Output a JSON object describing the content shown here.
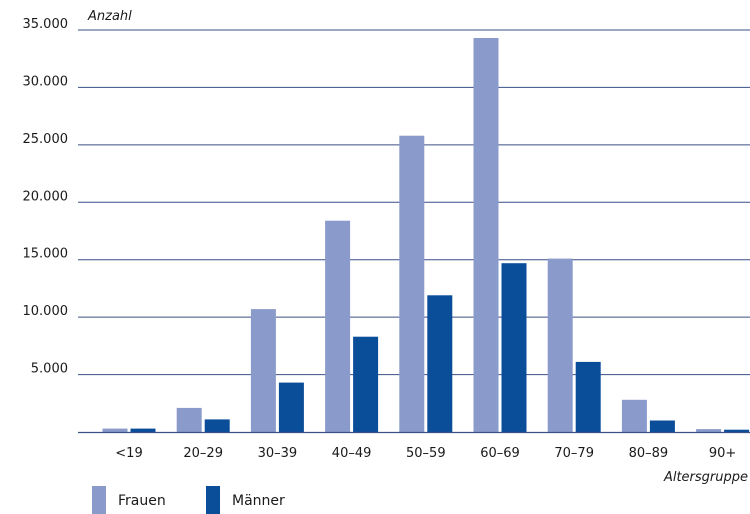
{
  "chart_data": {
    "type": "bar",
    "ylabel": "Anzahl",
    "xlabel": "Altersgruppe",
    "categories": [
      "<19",
      "20–29",
      "30–39",
      "40–49",
      "50–59",
      "60–69",
      "70–79",
      "80–89",
      "90+"
    ],
    "series": [
      {
        "name": "Frauen",
        "color": "#8a9bcb",
        "values": [
          300,
          2100,
          10700,
          18400,
          25800,
          34300,
          15100,
          2800,
          250
        ]
      },
      {
        "name": "Männer",
        "color": "#0a4d99",
        "values": [
          300,
          1100,
          4300,
          8300,
          11900,
          14700,
          6100,
          1000,
          200
        ]
      }
    ],
    "ylim": [
      0,
      35000
    ],
    "yticks": [
      5000,
      10000,
      15000,
      20000,
      25000,
      30000,
      35000
    ],
    "ytick_labels": [
      "5.000",
      "10.000",
      "15.000",
      "20.000",
      "25.000",
      "30.000",
      "35.000"
    ],
    "grid": true,
    "gridline_color": "#3a4f85",
    "legend": "bottom-left"
  }
}
